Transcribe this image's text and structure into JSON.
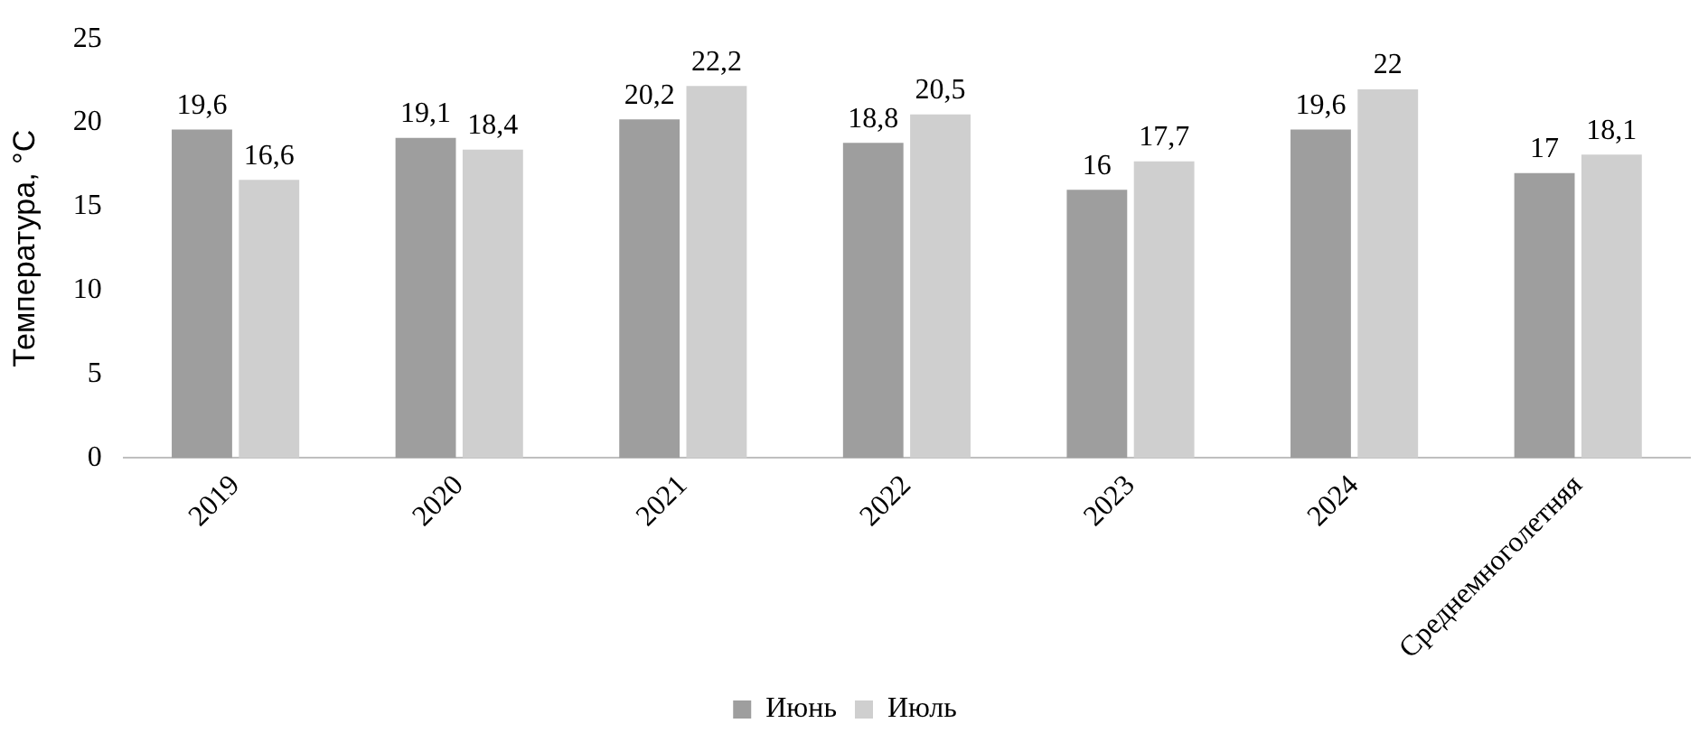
{
  "chart_data": {
    "type": "bar",
    "ylabel": "Температура, °C",
    "categories": [
      "2019",
      "2020",
      "2021",
      "2022",
      "2023",
      "2024",
      "Среднемноголетняя"
    ],
    "series": [
      {
        "name": "Июнь",
        "color": "#9e9e9e",
        "values": [
          19.6,
          19.1,
          20.2,
          18.8,
          16,
          19.6,
          17
        ],
        "value_labels": [
          "19,6",
          "19,1",
          "20,2",
          "18,8",
          "16",
          "19,6",
          "17"
        ]
      },
      {
        "name": "Июль",
        "color": "#cfcfcf",
        "values": [
          16.6,
          18.4,
          22.2,
          20.5,
          17.7,
          22,
          18.1
        ],
        "value_labels": [
          "16,6",
          "18,4",
          "22,2",
          "20,5",
          "17,7",
          "22",
          "18,1"
        ]
      }
    ],
    "ylim": [
      0,
      25
    ],
    "yticks": [
      0,
      5,
      10,
      15,
      20,
      25
    ],
    "grid": false,
    "legend": "bottom"
  }
}
